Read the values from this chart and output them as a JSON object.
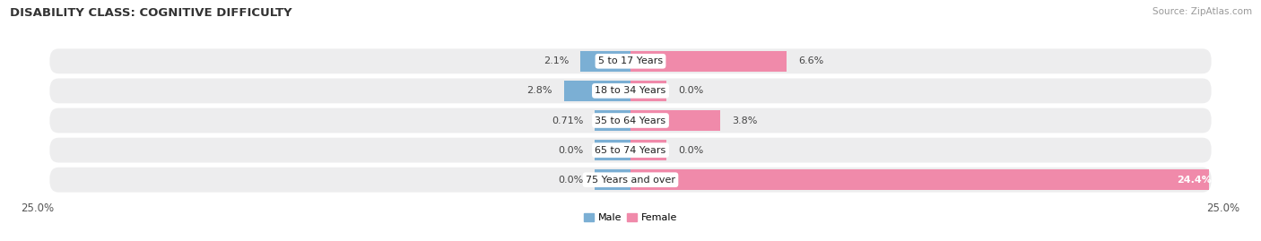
{
  "title": "DISABILITY CLASS: COGNITIVE DIFFICULTY",
  "source": "Source: ZipAtlas.com",
  "categories": [
    "5 to 17 Years",
    "18 to 34 Years",
    "35 to 64 Years",
    "65 to 74 Years",
    "75 Years and over"
  ],
  "male_values": [
    2.1,
    2.8,
    0.71,
    0.0,
    0.0
  ],
  "female_values": [
    6.6,
    0.0,
    3.8,
    0.0,
    24.4
  ],
  "male_labels": [
    "2.1%",
    "2.8%",
    "0.71%",
    "0.0%",
    "0.0%"
  ],
  "female_labels": [
    "6.6%",
    "0.0%",
    "3.8%",
    "0.0%",
    "24.4%"
  ],
  "xlim": 25.0,
  "male_color": "#7bafd4",
  "female_color": "#f08aaa",
  "bar_height": 0.68,
  "row_bg_color": "#ededee",
  "stub_size": 1.5,
  "title_fontsize": 9.5,
  "label_fontsize": 8,
  "cat_fontsize": 8,
  "tick_fontsize": 8.5,
  "source_fontsize": 7.5,
  "title_color": "#333333",
  "source_color": "#999999",
  "text_color": "#444444"
}
